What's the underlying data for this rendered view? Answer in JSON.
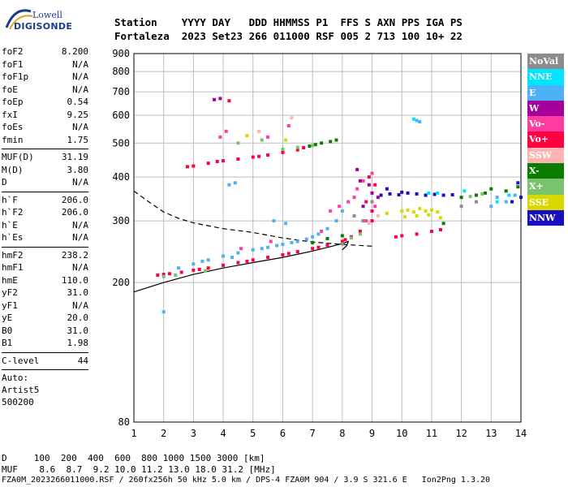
{
  "logo": {
    "line1": "Lowell",
    "line2": "DIGISONDE"
  },
  "header": {
    "labels": "Station    YYYY DAY   DDD HHMMSS P1  FFS S AXN PPS IGA PS",
    "values": "Fortaleza  2023 Set23 266 011000 RSF 005 2 713 100 10+ 22"
  },
  "params": {
    "group1": [
      {
        "k": "foF2",
        "v": "8.200"
      },
      {
        "k": "foF1",
        "v": "N/A"
      },
      {
        "k": "foF1p",
        "v": "N/A"
      },
      {
        "k": "foE",
        "v": "N/A"
      },
      {
        "k": "foEp",
        "v": "0.54"
      },
      {
        "k": "fxI",
        "v": "9.25"
      },
      {
        "k": "foEs",
        "v": "N/A"
      },
      {
        "k": "fmin",
        "v": "1.75"
      }
    ],
    "group2": [
      {
        "k": "MUF(D)",
        "v": "31.19"
      },
      {
        "k": "M(D)",
        "v": "3.80"
      },
      {
        "k": "D",
        "v": "N/A"
      }
    ],
    "group3": [
      {
        "k": "h`F",
        "v": "206.0"
      },
      {
        "k": "h`F2",
        "v": "206.0"
      },
      {
        "k": "h`E",
        "v": "N/A"
      },
      {
        "k": "h`Es",
        "v": "N/A"
      }
    ],
    "group4": [
      {
        "k": "hmF2",
        "v": "238.2"
      },
      {
        "k": "hmF1",
        "v": "N/A"
      },
      {
        "k": "hmE",
        "v": "110.0"
      },
      {
        "k": "yF2",
        "v": "31.0"
      },
      {
        "k": "yF1",
        "v": "N/A"
      },
      {
        "k": "yE",
        "v": "20.0"
      },
      {
        "k": "B0",
        "v": "31.0"
      },
      {
        "k": "B1",
        "v": "1.98"
      }
    ],
    "group5": [
      {
        "k": "C-level",
        "v": "44"
      }
    ],
    "auto": [
      "Auto:",
      "Artist5",
      "500200"
    ]
  },
  "footer": {
    "line1": "D     100  200  400  600  800 1000 1500 3000 [km]",
    "line2": "MUF    8.6  8.7  9.2 10.0 11.2 13.0 18.0 31.2 [MHz]",
    "line3": "FZA0M_2023266011000.RSF / 260fx256h 50 kHz 5.0 km / DPS-4 FZA0M 904 / 3.9 S 321.6 E   Ion2Png 1.3.20"
  },
  "legend": [
    {
      "name": "NoVal",
      "color": "#8c8c8c"
    },
    {
      "name": "NNE",
      "color": "#00e5ff"
    },
    {
      "name": "E",
      "color": "#4db1f5"
    },
    {
      "name": "W",
      "color": "#a6009c"
    },
    {
      "name": "Vo-",
      "color": "#ff3da0"
    },
    {
      "name": "Vo+",
      "color": "#ff0040"
    },
    {
      "name": "SSW",
      "color": "#ffb3b3"
    },
    {
      "name": "X-",
      "color": "#0a7d00"
    },
    {
      "name": "X+",
      "color": "#7ac26e"
    },
    {
      "name": "SSE",
      "color": "#d9d900"
    },
    {
      "name": "NNW",
      "color": "#1a0fbf"
    }
  ],
  "chart_data": {
    "type": "scatter",
    "xlabel": "",
    "ylabel": "",
    "xlim": [
      1,
      14
    ],
    "ylim": [
      80,
      900
    ],
    "y_scale": "log",
    "x_ticks": [
      1,
      2,
      3,
      4,
      5,
      6,
      7,
      8,
      9,
      10,
      11,
      12,
      13,
      14
    ],
    "y_ticks": [
      80,
      200,
      300,
      400,
      500,
      600,
      700,
      800,
      900
    ],
    "grid": true,
    "series": [
      {
        "color": "#ff0040",
        "points": [
          [
            1.8,
            210
          ],
          [
            2.2,
            212
          ],
          [
            2.6,
            214
          ],
          [
            3.0,
            217
          ],
          [
            3.5,
            220
          ],
          [
            4.0,
            224
          ],
          [
            4.5,
            228
          ],
          [
            5.0,
            232
          ],
          [
            5.5,
            236
          ],
          [
            6.0,
            240
          ],
          [
            6.5,
            245
          ],
          [
            7.0,
            250
          ],
          [
            7.5,
            256
          ],
          [
            8.0,
            262
          ],
          [
            8.3,
            270
          ],
          [
            8.6,
            280
          ],
          [
            9.0,
            300
          ],
          [
            2.0,
            211
          ],
          [
            3.2,
            218
          ],
          [
            4.8,
            230
          ],
          [
            6.2,
            242
          ],
          [
            7.2,
            252
          ],
          [
            8.1,
            265
          ],
          [
            10.5,
            275
          ],
          [
            11.0,
            280
          ],
          [
            11.3,
            283
          ],
          [
            10.0,
            272
          ],
          [
            9.8,
            270
          ],
          [
            3.0,
            430
          ],
          [
            3.5,
            438
          ],
          [
            4.0,
            445
          ],
          [
            4.5,
            450
          ],
          [
            5.0,
            456
          ],
          [
            5.5,
            462
          ],
          [
            6.0,
            470
          ],
          [
            6.5,
            478
          ],
          [
            2.8,
            428
          ],
          [
            3.8,
            443
          ],
          [
            5.2,
            458
          ],
          [
            6.7,
            485
          ],
          [
            4.2,
            660
          ],
          [
            8.9,
            400
          ],
          [
            9.1,
            380
          ],
          [
            8.8,
            340
          ],
          [
            9.0,
            320
          ]
        ]
      },
      {
        "color": "#4db1f5",
        "points": [
          [
            2.5,
            220
          ],
          [
            3.0,
            226
          ],
          [
            3.5,
            232
          ],
          [
            4.0,
            238
          ],
          [
            4.5,
            243
          ],
          [
            5.0,
            248
          ],
          [
            5.5,
            252
          ],
          [
            6.0,
            257
          ],
          [
            6.5,
            262
          ],
          [
            7.0,
            270
          ],
          [
            7.2,
            275
          ],
          [
            7.5,
            285
          ],
          [
            7.8,
            300
          ],
          [
            8.0,
            320
          ],
          [
            4.3,
            236
          ],
          [
            5.3,
            250
          ],
          [
            6.3,
            260
          ],
          [
            6.8,
            266
          ],
          [
            5.8,
            255
          ],
          [
            3.3,
            230
          ],
          [
            13.0,
            330
          ],
          [
            13.2,
            350
          ],
          [
            13.5,
            340
          ],
          [
            13.8,
            355
          ],
          [
            4.2,
            380
          ],
          [
            4.4,
            385
          ],
          [
            10.5,
            580
          ],
          [
            10.6,
            575
          ],
          [
            5.7,
            300
          ],
          [
            6.1,
            295
          ],
          [
            2.0,
            165
          ]
        ]
      },
      {
        "color": "#ff3da0",
        "points": [
          [
            7.6,
            320
          ],
          [
            7.9,
            330
          ],
          [
            8.2,
            340
          ],
          [
            8.5,
            370
          ],
          [
            8.7,
            390
          ],
          [
            9.0,
            410
          ],
          [
            8.4,
            350
          ],
          [
            8.8,
            300
          ],
          [
            9.1,
            330
          ],
          [
            7.3,
            280
          ],
          [
            3.9,
            520
          ],
          [
            4.1,
            540
          ],
          [
            5.5,
            520
          ],
          [
            6.2,
            560
          ],
          [
            4.6,
            250
          ],
          [
            5.6,
            262
          ]
        ]
      },
      {
        "color": "#0a7d00",
        "points": [
          [
            6.9,
            490
          ],
          [
            7.1,
            495
          ],
          [
            7.3,
            500
          ],
          [
            7.6,
            505
          ],
          [
            7.8,
            510
          ],
          [
            12.5,
            355
          ],
          [
            12.8,
            360
          ],
          [
            13.0,
            370
          ],
          [
            13.5,
            365
          ],
          [
            13.9,
            375
          ],
          [
            12.0,
            350
          ],
          [
            7.0,
            260
          ],
          [
            7.5,
            267
          ],
          [
            8.0,
            272
          ],
          [
            11.4,
            295
          ]
        ]
      },
      {
        "color": "#7ac26e",
        "points": [
          [
            6.0,
            480
          ],
          [
            6.5,
            486
          ],
          [
            7.0,
            492
          ],
          [
            12.3,
            352
          ],
          [
            12.7,
            358
          ],
          [
            2.0,
            208
          ],
          [
            2.4,
            210
          ],
          [
            3.4,
            216
          ],
          [
            8.3,
            268
          ],
          [
            8.6,
            275
          ],
          [
            4.5,
            500
          ],
          [
            5.3,
            510
          ]
        ]
      },
      {
        "color": "#d9d900",
        "points": [
          [
            10.0,
            320
          ],
          [
            10.2,
            322
          ],
          [
            10.4,
            318
          ],
          [
            10.6,
            325
          ],
          [
            10.8,
            320
          ],
          [
            11.0,
            322
          ],
          [
            11.2,
            318
          ],
          [
            10.1,
            308
          ],
          [
            10.5,
            310
          ],
          [
            10.9,
            312
          ],
          [
            11.3,
            306
          ],
          [
            9.5,
            315
          ],
          [
            4.8,
            525
          ],
          [
            6.1,
            510
          ]
        ]
      },
      {
        "color": "#1a0fbf",
        "points": [
          [
            9.3,
            355
          ],
          [
            9.6,
            358
          ],
          [
            9.9,
            356
          ],
          [
            10.2,
            360
          ],
          [
            10.5,
            358
          ],
          [
            10.8,
            355
          ],
          [
            11.1,
            357
          ],
          [
            11.4,
            355
          ],
          [
            11.7,
            356
          ],
          [
            9.5,
            370
          ],
          [
            10.0,
            362
          ],
          [
            13.9,
            385
          ],
          [
            14.0,
            350
          ],
          [
            13.7,
            340
          ]
        ]
      },
      {
        "color": "#a6009c",
        "points": [
          [
            8.9,
            380
          ],
          [
            9.0,
            360
          ],
          [
            8.7,
            330
          ],
          [
            9.2,
            350
          ],
          [
            3.9,
            670
          ],
          [
            3.7,
            665
          ],
          [
            8.5,
            420
          ],
          [
            8.6,
            390
          ]
        ]
      },
      {
        "color": "#00e5ff",
        "points": [
          [
            10.4,
            585
          ],
          [
            10.9,
            360
          ],
          [
            13.2,
            340
          ],
          [
            13.6,
            355
          ],
          [
            11.2,
            360
          ],
          [
            12.1,
            365
          ]
        ]
      },
      {
        "color": "#8c8c8c",
        "points": [
          [
            8.7,
            300
          ],
          [
            9.0,
            340
          ],
          [
            8.4,
            310
          ],
          [
            12.0,
            330
          ],
          [
            12.5,
            340
          ],
          [
            8.0,
            258
          ]
        ]
      },
      {
        "color": "#ffb3b3",
        "points": [
          [
            8.9,
            295
          ],
          [
            9.2,
            310
          ],
          [
            5.2,
            540
          ],
          [
            6.3,
            590
          ]
        ]
      }
    ],
    "curves": [
      {
        "style": "solid",
        "points": [
          [
            1.0,
            188
          ],
          [
            2.0,
            200
          ],
          [
            3.0,
            211
          ],
          [
            4.0,
            220
          ],
          [
            5.0,
            228
          ],
          [
            6.0,
            236
          ],
          [
            7.0,
            246
          ],
          [
            7.5,
            252
          ],
          [
            7.9,
            257
          ],
          [
            8.1,
            260
          ],
          [
            8.2,
            262
          ],
          [
            8.15,
            255
          ],
          [
            8.0,
            248
          ]
        ]
      },
      {
        "style": "dashed",
        "points": [
          [
            1.0,
            365
          ],
          [
            1.5,
            340
          ],
          [
            2.0,
            318
          ],
          [
            2.5,
            305
          ],
          [
            3.0,
            296
          ],
          [
            4.0,
            285
          ],
          [
            5.0,
            278
          ],
          [
            6.0,
            268
          ],
          [
            7.0,
            261
          ],
          [
            8.0,
            257
          ],
          [
            9.0,
            254
          ]
        ]
      }
    ]
  }
}
